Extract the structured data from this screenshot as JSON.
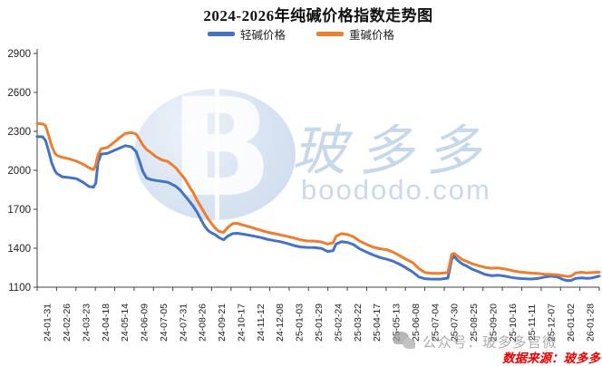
{
  "title": "2024-2026年纯碱价格指数走势图",
  "legend": [
    {
      "label": "轻碱价格",
      "color": "#4472C4"
    },
    {
      "label": "重碱价格",
      "color": "#ED7D31"
    }
  ],
  "watermark": {
    "logo_letter": "B",
    "brand": "玻多多",
    "site": "boododo.com",
    "wechat_text": "公众号：玻多多官微"
  },
  "source_note": "数据来源：玻多多",
  "colors": {
    "light_series": "#4472C4",
    "heavy_series": "#ED7D31",
    "axis": "#404040",
    "tick_text": "#222222",
    "source_red": "#ee0000",
    "watermark_blue": "#c3d4e9",
    "watermark_gray": "#8f8f8f"
  },
  "chart_data": {
    "type": "line",
    "title": "2024-2026年纯碱价格指数走势图",
    "xlabel": "",
    "ylabel": "",
    "grid": false,
    "legend_position": "top",
    "ylim": [
      1100,
      2900
    ],
    "yticks": [
      1100,
      1400,
      1700,
      2000,
      2300,
      2600,
      2900
    ],
    "x_start": "2024-01-31",
    "x_end": "2026-02-08",
    "x_tick_labels": [
      "24-01-31",
      "24-02-26",
      "24-03-23",
      "24-04-18",
      "24-05-14",
      "24-06-09",
      "24-07-05",
      "24-07-31",
      "24-08-26",
      "24-09-21",
      "24-10-17",
      "24-11-12",
      "24-12-08",
      "25-01-03",
      "25-01-29",
      "25-02-24",
      "25-03-22",
      "25-04-17",
      "25-05-13",
      "25-06-08",
      "25-07-04",
      "25-07-30",
      "25-08-25",
      "25-09-20",
      "25-10-16",
      "25-11-11",
      "25-12-07",
      "26-01-02",
      "26-01-28"
    ],
    "series": [
      {
        "name": "轻碱价格",
        "color": "#4472C4"
      },
      {
        "name": "重碱价格",
        "color": "#ED7D31"
      }
    ],
    "points_format": [
      "date",
      "轻碱价格",
      "重碱价格"
    ],
    "points": [
      [
        "2024-01-31",
        2260,
        2360
      ],
      [
        "2024-02-07",
        2258,
        2358
      ],
      [
        "2024-02-11",
        2230,
        2345
      ],
      [
        "2024-02-15",
        2150,
        2270
      ],
      [
        "2024-02-19",
        2060,
        2190
      ],
      [
        "2024-02-23",
        2000,
        2135
      ],
      [
        "2024-02-26",
        1975,
        2115
      ],
      [
        "2024-03-04",
        1950,
        2100
      ],
      [
        "2024-03-12",
        1945,
        2090
      ],
      [
        "2024-03-23",
        1935,
        2070
      ],
      [
        "2024-04-01",
        1905,
        2045
      ],
      [
        "2024-04-08",
        1875,
        2020
      ],
      [
        "2024-04-14",
        1870,
        2005
      ],
      [
        "2024-04-17",
        1900,
        2040
      ],
      [
        "2024-04-20",
        2060,
        2120
      ],
      [
        "2024-04-24",
        2125,
        2165
      ],
      [
        "2024-05-02",
        2130,
        2175
      ],
      [
        "2024-05-10",
        2150,
        2210
      ],
      [
        "2024-05-18",
        2170,
        2250
      ],
      [
        "2024-05-26",
        2190,
        2285
      ],
      [
        "2024-06-03",
        2180,
        2290
      ],
      [
        "2024-06-09",
        2145,
        2280
      ],
      [
        "2024-06-13",
        2080,
        2245
      ],
      [
        "2024-06-18",
        1990,
        2195
      ],
      [
        "2024-06-23",
        1940,
        2160
      ],
      [
        "2024-06-29",
        1928,
        2135
      ],
      [
        "2024-07-05",
        1922,
        2105
      ],
      [
        "2024-07-13",
        1915,
        2080
      ],
      [
        "2024-07-21",
        1908,
        2068
      ],
      [
        "2024-07-27",
        1890,
        2040
      ],
      [
        "2024-07-31",
        1878,
        2020
      ],
      [
        "2024-08-06",
        1848,
        1978
      ],
      [
        "2024-08-12",
        1805,
        1935
      ],
      [
        "2024-08-18",
        1762,
        1875
      ],
      [
        "2024-08-23",
        1725,
        1830
      ],
      [
        "2024-08-28",
        1680,
        1772
      ],
      [
        "2024-09-02",
        1625,
        1722
      ],
      [
        "2024-09-07",
        1570,
        1672
      ],
      [
        "2024-09-12",
        1535,
        1625
      ],
      [
        "2024-09-17",
        1515,
        1585
      ],
      [
        "2024-09-21",
        1505,
        1555
      ],
      [
        "2024-09-26",
        1482,
        1530
      ],
      [
        "2024-10-02",
        1465,
        1522
      ],
      [
        "2024-10-08",
        1495,
        1562
      ],
      [
        "2024-10-14",
        1512,
        1590
      ],
      [
        "2024-10-20",
        1515,
        1592
      ],
      [
        "2024-10-28",
        1508,
        1578
      ],
      [
        "2024-11-05",
        1500,
        1565
      ],
      [
        "2024-11-12",
        1492,
        1552
      ],
      [
        "2024-11-20",
        1482,
        1538
      ],
      [
        "2024-11-28",
        1470,
        1525
      ],
      [
        "2024-12-08",
        1458,
        1512
      ],
      [
        "2024-12-16",
        1450,
        1502
      ],
      [
        "2024-12-24",
        1438,
        1492
      ],
      [
        "2025-01-03",
        1420,
        1478
      ],
      [
        "2025-01-11",
        1410,
        1465
      ],
      [
        "2025-01-20",
        1406,
        1456
      ],
      [
        "2025-01-29",
        1405,
        1455
      ],
      [
        "2025-02-08",
        1398,
        1448
      ],
      [
        "2025-02-16",
        1375,
        1432
      ],
      [
        "2025-02-23",
        1382,
        1442
      ],
      [
        "2025-02-27",
        1432,
        1492
      ],
      [
        "2025-03-06",
        1450,
        1512
      ],
      [
        "2025-03-14",
        1445,
        1505
      ],
      [
        "2025-03-22",
        1428,
        1488
      ],
      [
        "2025-03-30",
        1395,
        1455
      ],
      [
        "2025-04-08",
        1370,
        1430
      ],
      [
        "2025-04-17",
        1348,
        1408
      ],
      [
        "2025-04-26",
        1328,
        1396
      ],
      [
        "2025-05-05",
        1315,
        1388
      ],
      [
        "2025-05-13",
        1300,
        1370
      ],
      [
        "2025-05-21",
        1278,
        1345
      ],
      [
        "2025-05-29",
        1252,
        1318
      ],
      [
        "2025-06-08",
        1215,
        1288
      ],
      [
        "2025-06-16",
        1178,
        1242
      ],
      [
        "2025-06-24",
        1165,
        1212
      ],
      [
        "2025-07-04",
        1162,
        1207
      ],
      [
        "2025-07-14",
        1162,
        1206
      ],
      [
        "2025-07-24",
        1170,
        1212
      ],
      [
        "2025-07-29",
        1315,
        1352
      ],
      [
        "2025-08-01",
        1338,
        1360
      ],
      [
        "2025-08-06",
        1305,
        1338
      ],
      [
        "2025-08-12",
        1278,
        1312
      ],
      [
        "2025-08-18",
        1262,
        1298
      ],
      [
        "2025-08-25",
        1238,
        1280
      ],
      [
        "2025-09-03",
        1218,
        1265
      ],
      [
        "2025-09-11",
        1198,
        1252
      ],
      [
        "2025-09-20",
        1188,
        1246
      ],
      [
        "2025-09-28",
        1192,
        1248
      ],
      [
        "2025-10-07",
        1185,
        1240
      ],
      [
        "2025-10-16",
        1175,
        1228
      ],
      [
        "2025-10-25",
        1168,
        1218
      ],
      [
        "2025-11-03",
        1165,
        1212
      ],
      [
        "2025-11-11",
        1163,
        1208
      ],
      [
        "2025-11-20",
        1168,
        1205
      ],
      [
        "2025-11-28",
        1178,
        1200
      ],
      [
        "2025-12-07",
        1185,
        1198
      ],
      [
        "2025-12-15",
        1178,
        1195
      ],
      [
        "2025-12-22",
        1160,
        1188
      ],
      [
        "2025-12-28",
        1150,
        1182
      ],
      [
        "2026-01-02",
        1152,
        1185
      ],
      [
        "2026-01-08",
        1168,
        1210
      ],
      [
        "2026-01-16",
        1172,
        1215
      ],
      [
        "2026-01-22",
        1168,
        1210
      ],
      [
        "2026-01-28",
        1170,
        1212
      ],
      [
        "2026-02-08",
        1185,
        1215
      ]
    ]
  }
}
